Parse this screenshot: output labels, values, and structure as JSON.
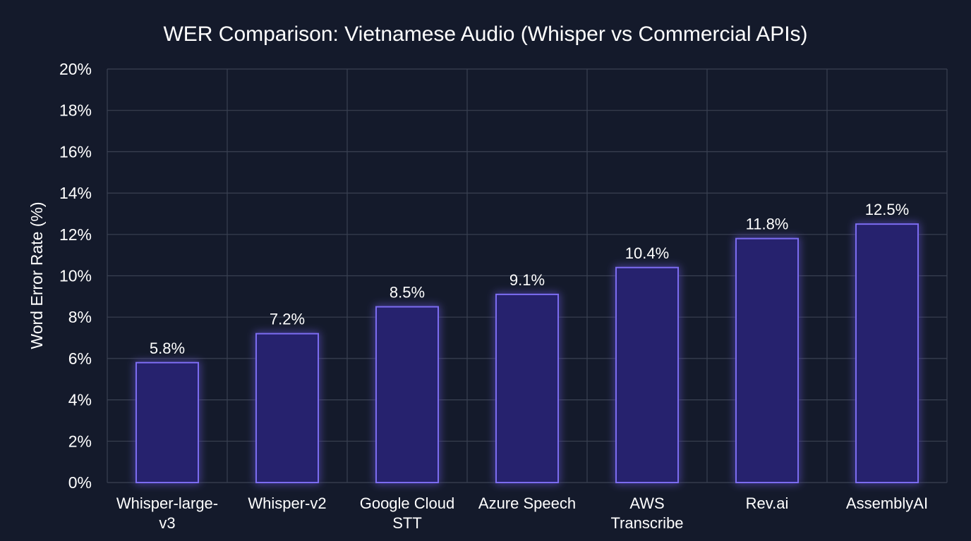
{
  "chart_data": {
    "type": "bar",
    "title": "WER Comparison: Vietnamese Audio (Whisper vs Commercial APIs)",
    "xlabel": "",
    "ylabel": "Word Error Rate (%)",
    "categories": [
      "Whisper-large-v3",
      "Whisper-v2",
      "Google Cloud STT",
      "Azure Speech",
      "AWS Transcribe",
      "Rev.ai",
      "AssemblyAI"
    ],
    "category_lines": [
      [
        "Whisper-large-",
        "v3"
      ],
      [
        "Whisper-v2"
      ],
      [
        "Google Cloud",
        "STT"
      ],
      [
        "Azure Speech"
      ],
      [
        "AWS",
        "Transcribe"
      ],
      [
        "Rev.ai"
      ],
      [
        "AssemblyAI"
      ]
    ],
    "values": [
      5.8,
      7.2,
      8.5,
      9.1,
      10.4,
      11.8,
      12.5
    ],
    "value_labels": [
      "5.8%",
      "7.2%",
      "8.5%",
      "9.1%",
      "10.4%",
      "11.8%",
      "12.5%"
    ],
    "ylim": [
      0,
      20
    ],
    "yticks": [
      0,
      2,
      4,
      6,
      8,
      10,
      12,
      14,
      16,
      18,
      20
    ],
    "ytick_labels": [
      "0%",
      "2%",
      "4%",
      "6%",
      "8%",
      "10%",
      "12%",
      "14%",
      "16%",
      "18%",
      "20%"
    ],
    "grid": true,
    "legend": "none",
    "colors": {
      "background": "#141a2b",
      "grid": "#3a4152",
      "bar_fill": "#27216e",
      "bar_stroke": "#7b6cf0",
      "bar_glow": "#6a5cff",
      "text": "#ffffff"
    }
  }
}
